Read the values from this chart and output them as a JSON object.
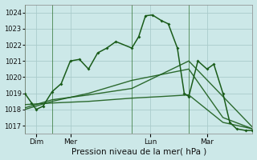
{
  "background_color": "#cce8e8",
  "grid_color": "#aacccc",
  "line_color": "#1a5c1a",
  "title": "Pression niveau de la mer( hPa )",
  "ylim": [
    1016.5,
    1024.5
  ],
  "yticks": [
    1017,
    1018,
    1019,
    1020,
    1021,
    1022,
    1023,
    1024
  ],
  "xlim": [
    0,
    10
  ],
  "xtick_positions": [
    0.5,
    2.0,
    5.5,
    8.0
  ],
  "xtick_labels": [
    "Dim",
    "Mer",
    "Lun",
    "Mar"
  ],
  "vline_positions": [
    0,
    1.2,
    4.7,
    7.2
  ],
  "lines": [
    {
      "x": [
        0.0,
        0.3,
        0.5,
        0.8,
        1.2,
        1.6,
        2.0,
        2.4,
        2.8,
        3.2,
        3.6,
        4.0,
        4.7,
        5.0,
        5.3,
        5.6,
        6.0,
        6.3,
        6.7,
        7.0,
        7.2,
        7.6,
        8.0,
        8.3,
        8.7,
        9.0,
        9.3,
        9.7,
        10.0
      ],
      "y": [
        1019.0,
        1018.4,
        1018.0,
        1018.2,
        1019.1,
        1019.6,
        1021.0,
        1021.1,
        1020.5,
        1021.5,
        1021.8,
        1022.2,
        1021.8,
        1022.5,
        1023.8,
        1023.85,
        1023.5,
        1023.3,
        1021.8,
        1019.0,
        1018.8,
        1021.0,
        1020.5,
        1020.8,
        1019.0,
        1017.2,
        1016.8,
        1016.7,
        1016.7
      ],
      "marker": "D",
      "markersize": 2.0,
      "linewidth": 1.1,
      "has_marker": true
    },
    {
      "x": [
        0.0,
        1.2,
        2.8,
        4.7,
        7.2,
        8.7,
        10.0
      ],
      "y": [
        1018.0,
        1018.5,
        1019.0,
        1019.8,
        1020.5,
        1017.5,
        1016.8
      ],
      "has_marker": false,
      "linewidth": 1.0
    },
    {
      "x": [
        0.0,
        1.2,
        2.8,
        4.7,
        6.0,
        7.2,
        8.7,
        10.0
      ],
      "y": [
        1018.3,
        1018.4,
        1018.5,
        1018.7,
        1018.8,
        1018.9,
        1017.2,
        1016.8
      ],
      "has_marker": false,
      "linewidth": 1.0
    },
    {
      "x": [
        0.0,
        1.2,
        2.8,
        4.7,
        7.2,
        10.0
      ],
      "y": [
        1018.1,
        1018.6,
        1018.9,
        1019.3,
        1021.0,
        1016.9
      ],
      "has_marker": false,
      "linewidth": 1.0
    }
  ]
}
